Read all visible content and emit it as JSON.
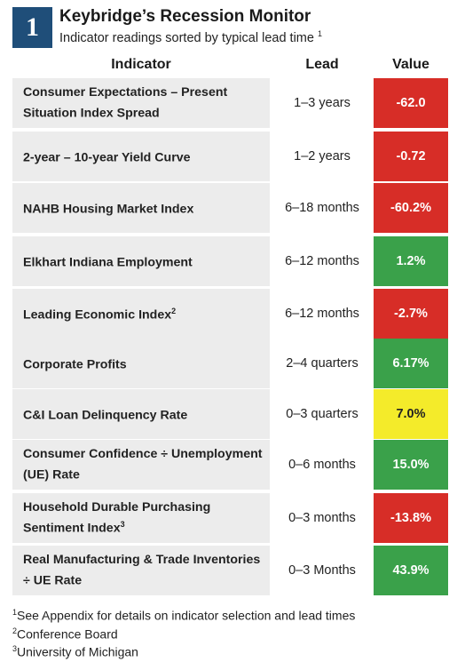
{
  "header": {
    "badge": "1",
    "title": "Keybridge’s Recession Monitor",
    "subtitle": "Indicator readings sorted by typical lead time",
    "subtitle_note": "1"
  },
  "columns": {
    "indicator": "Indicator",
    "lead": "Lead",
    "value": "Value"
  },
  "rows": [
    {
      "indicator": "Consumer Expectations – Present Situation Index Spread",
      "sup": "",
      "lead": "1–3 years",
      "value": "-62.0",
      "status": "red"
    },
    {
      "indicator": "2-year – 10-year Yield Curve",
      "sup": "",
      "lead": "1–2 years",
      "value": "-0.72",
      "status": "red"
    },
    {
      "indicator": "NAHB Housing Market Index",
      "sup": "",
      "lead": "6–18 months",
      "value": "-60.2%",
      "status": "red"
    },
    {
      "indicator": "Elkhart Indiana Employment",
      "sup": "",
      "lead": "6–12 months",
      "value": "1.2%",
      "status": "green"
    },
    {
      "indicator": "Leading Economic Index",
      "sup": "2",
      "lead": "6–12 months",
      "value": "-2.7%",
      "status": "red"
    },
    {
      "indicator": "Corporate Profits",
      "sup": "",
      "lead": "2–4 quarters",
      "value": "6.17%",
      "status": "green"
    },
    {
      "indicator": "C&I Loan Delinquency Rate",
      "sup": "",
      "lead": "0–3 quarters",
      "value": "7.0%",
      "status": "yellow"
    },
    {
      "indicator": "Consumer Confidence ÷ Unemployment (UE) Rate",
      "sup": "",
      "lead": "0–6 months",
      "value": "15.0%",
      "status": "green"
    },
    {
      "indicator": "Household Durable Purchasing Sentiment Index",
      "sup": "3",
      "lead": "0–3 months",
      "value": "-13.8%",
      "status": "red"
    },
    {
      "indicator": "Real Manufacturing & Trade Inventories ÷ UE Rate",
      "sup": "",
      "lead": "0–3 Months",
      "value": "43.9%",
      "status": "green"
    }
  ],
  "footnotes": [
    {
      "mark": "1",
      "text": "See Appendix for details on indicator selection and lead times"
    },
    {
      "mark": "2",
      "text": "Conference Board"
    },
    {
      "mark": "3",
      "text": "University of Michigan"
    }
  ],
  "colors": {
    "badge": "#1f4e79",
    "red": "#d72d27",
    "green": "#3aa14a",
    "yellow": "#f4eb2a",
    "row_bg": "#ececec"
  }
}
